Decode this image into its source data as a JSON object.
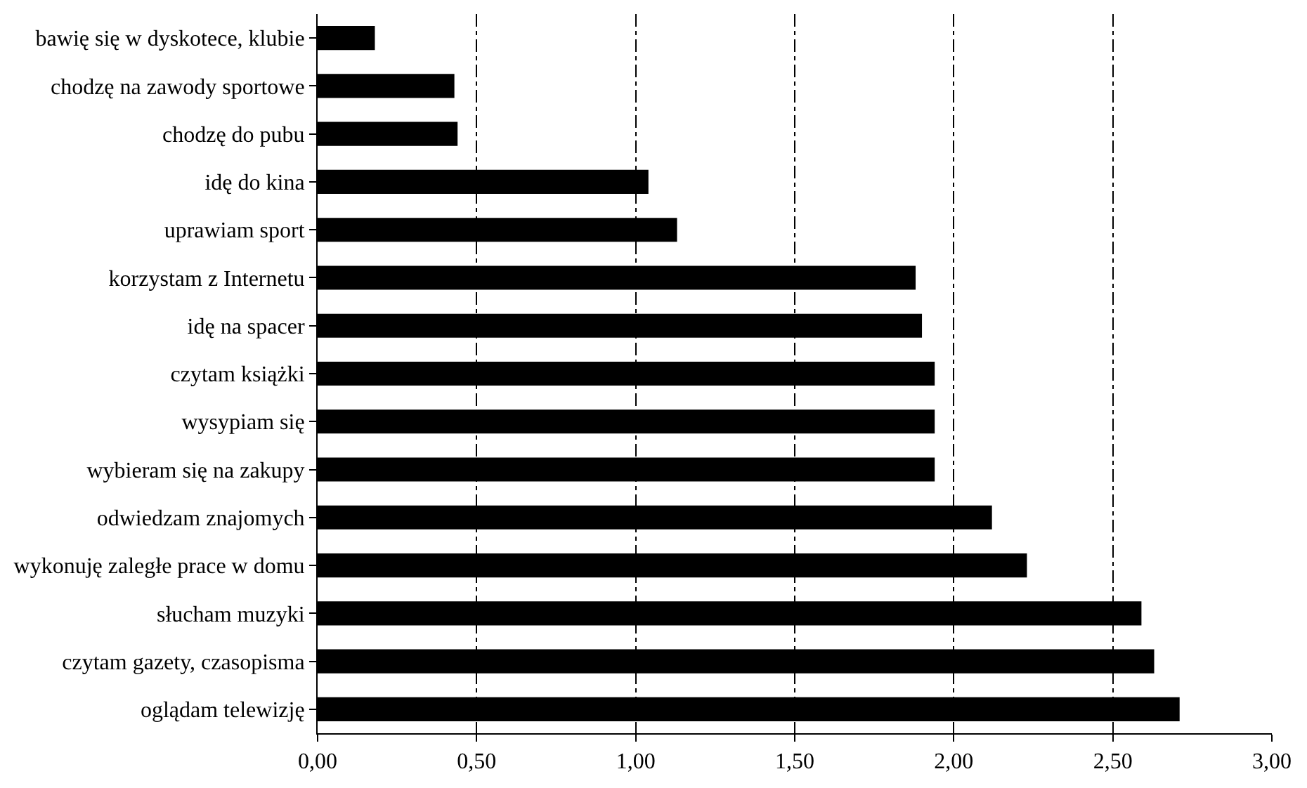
{
  "chart_data": {
    "type": "bar",
    "orientation": "horizontal",
    "categories": [
      "bawię się w dyskotece, klubie",
      "chodzę na zawody sportowe",
      "chodzę do pubu",
      "idę do kina",
      "uprawiam sport",
      "korzystam z Internetu",
      "idę na spacer",
      "czytam książki",
      "wysypiam się",
      "wybieram się na zakupy",
      "odwiedzam znajomych",
      "wykonuję zaległe prace w domu",
      "słucham muzyki",
      "czytam gazety, czasopisma",
      "oglądam telewizję"
    ],
    "values": [
      0.18,
      0.43,
      0.44,
      1.04,
      1.13,
      1.88,
      1.9,
      1.94,
      1.94,
      1.94,
      2.12,
      2.23,
      2.59,
      2.63,
      2.71
    ],
    "color": "#000000",
    "xlim": [
      0,
      3
    ],
    "xticks": [
      {
        "value": 0,
        "label": "0,00"
      },
      {
        "value": 0.5,
        "label": "0,50"
      },
      {
        "value": 1,
        "label": "1,00"
      },
      {
        "value": 1.5,
        "label": "1,50"
      },
      {
        "value": 2,
        "label": "2,00"
      },
      {
        "value": 2.5,
        "label": "2,50"
      },
      {
        "value": 3,
        "label": "3,00"
      }
    ],
    "grid": "x"
  }
}
